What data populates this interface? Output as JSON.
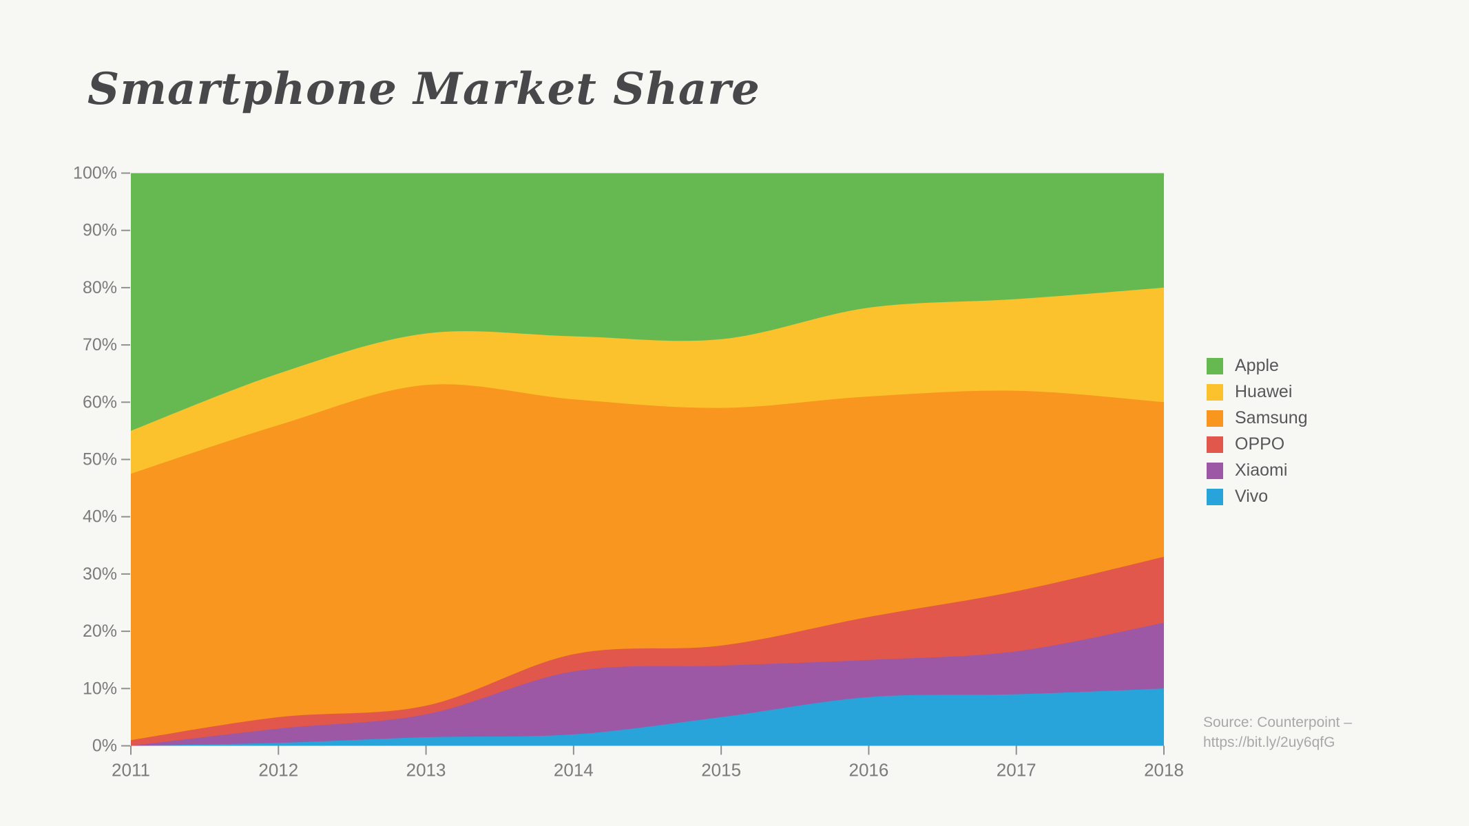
{
  "title": "Smartphone Market Share",
  "source": {
    "line1": "Source: Counterpoint –",
    "line2": "https://bit.ly/2uy6qfG"
  },
  "colors": {
    "background": "#f7f7f4",
    "title_text": "#48484b",
    "axis_text": "#7b7b7b",
    "legend_text": "#57575b",
    "source_text": "#a8a8a8",
    "tick": "#8f8f8f"
  },
  "chart_data": {
    "type": "area",
    "stacked": true,
    "units": "percent",
    "title": "Smartphone Market Share",
    "x": [
      2011,
      2012,
      2013,
      2014,
      2015,
      2016,
      2017,
      2018
    ],
    "y_tick_labels": [
      "0%",
      "10%",
      "20%",
      "30%",
      "40%",
      "50%",
      "60%",
      "70%",
      "80%",
      "90%",
      "100%"
    ],
    "ylim": [
      0,
      100
    ],
    "grid": false,
    "legend_position": "right",
    "series": [
      {
        "name": "Vivo",
        "color": "#29a4db",
        "values": [
          0,
          0.5,
          1.5,
          2,
          5,
          8.5,
          9,
          10
        ]
      },
      {
        "name": "Xiaomi",
        "color": "#9c58a5",
        "values": [
          0,
          2.5,
          4,
          11,
          9,
          6.5,
          7.5,
          11.5
        ]
      },
      {
        "name": "OPPO",
        "color": "#e2574b",
        "values": [
          1,
          2,
          1.5,
          3,
          3.5,
          7.5,
          10.5,
          11.5
        ]
      },
      {
        "name": "Samsung",
        "color": "#f8961f",
        "values": [
          46.5,
          51,
          56,
          44.5,
          41.5,
          38.5,
          35,
          27
        ]
      },
      {
        "name": "Huawei",
        "color": "#fcc22d",
        "values": [
          7.5,
          9,
          9,
          11,
          12,
          15.5,
          16,
          20
        ]
      },
      {
        "name": "Apple",
        "color": "#66b951",
        "values": [
          45,
          35,
          28,
          28.5,
          29,
          23.5,
          22,
          20
        ]
      }
    ],
    "stack_order_bottom_to_top": [
      "Vivo",
      "Xiaomi",
      "OPPO",
      "Samsung",
      "Huawei",
      "Apple"
    ],
    "legend_order": [
      "Apple",
      "Huawei",
      "Samsung",
      "OPPO",
      "Xiaomi",
      "Vivo"
    ]
  }
}
